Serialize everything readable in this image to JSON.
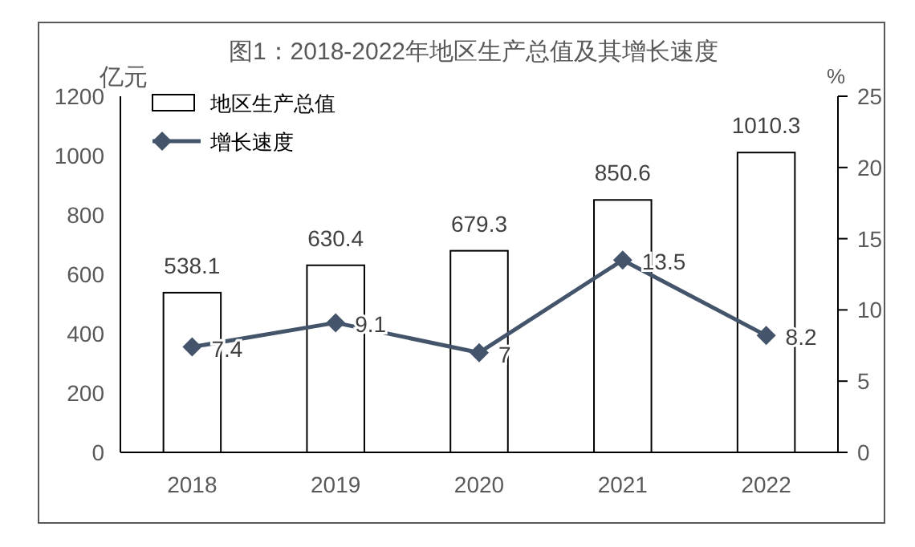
{
  "chart_data": {
    "type": "bar",
    "title": "图1：2018-2022年地区生产总值及其增长速度",
    "ylabel": "亿元",
    "y2label": "%",
    "categories": [
      "2018",
      "2019",
      "2020",
      "2021",
      "2022"
    ],
    "series": [
      {
        "name": "地区生产总值",
        "color": "#ffffff",
        "values": [
          538.1,
          630.4,
          679.3,
          850.6,
          1010.3
        ]
      },
      {
        "name": "增长速度",
        "type": "line",
        "axis": "y2",
        "color": "#44546a",
        "marker": "diamond",
        "values": [
          7.4,
          9.1,
          7,
          13.5,
          8.2
        ]
      }
    ],
    "ylim": [
      0,
      1200
    ],
    "yticks": [
      0,
      200,
      400,
      600,
      800,
      1000,
      1200
    ],
    "y2lim": [
      0,
      25
    ],
    "y2ticks": [
      0,
      5,
      10,
      15,
      20,
      25
    ],
    "data_labels": true,
    "legend": "top left",
    "grid": false
  }
}
